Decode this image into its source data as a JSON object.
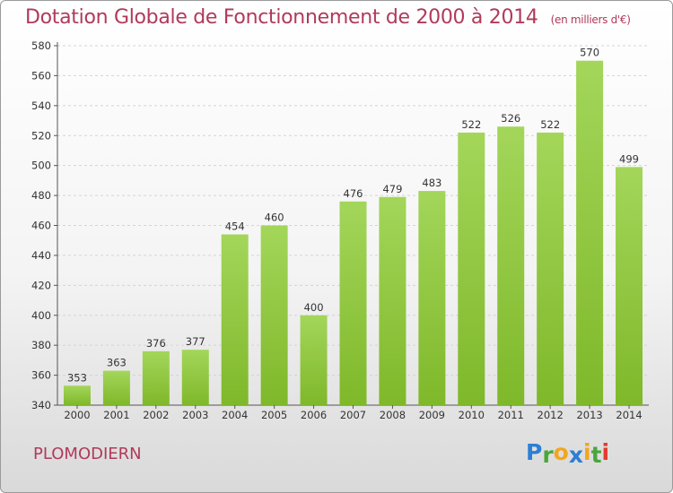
{
  "header": {
    "title": "Dotation Globale de Fonctionnement de 2000 à 2014",
    "subtitle": "(en milliers d'€)"
  },
  "footer": {
    "commune": "PLOMODIERN",
    "logo": {
      "text": "Proxiti",
      "letters": [
        "P",
        "r",
        "o",
        "x",
        "i",
        "t",
        "i"
      ],
      "colors": [
        "#2b7fd4",
        "#4aa63c",
        "#f2a61f",
        "#2b7fd4",
        "#f2a61f",
        "#4aa63c",
        "#e23b2f"
      ]
    }
  },
  "chart_data": {
    "type": "bar",
    "title": "Dotation Globale de Fonctionnement de 2000 à 2014",
    "subtitle": "(en milliers d'€)",
    "categories": [
      "2000",
      "2001",
      "2002",
      "2003",
      "2004",
      "2005",
      "2006",
      "2007",
      "2008",
      "2009",
      "2010",
      "2011",
      "2012",
      "2013",
      "2014"
    ],
    "values": [
      353,
      363,
      376,
      377,
      454,
      460,
      400,
      476,
      479,
      483,
      522,
      526,
      522,
      570,
      499
    ],
    "ylim": [
      340,
      580
    ],
    "yticks": [
      340,
      360,
      380,
      400,
      420,
      440,
      460,
      480,
      500,
      520,
      540,
      560,
      580
    ],
    "grid": true,
    "bar_color": "#7fb82a",
    "bar_color_light": "#a3d65a",
    "data_labels": true
  }
}
